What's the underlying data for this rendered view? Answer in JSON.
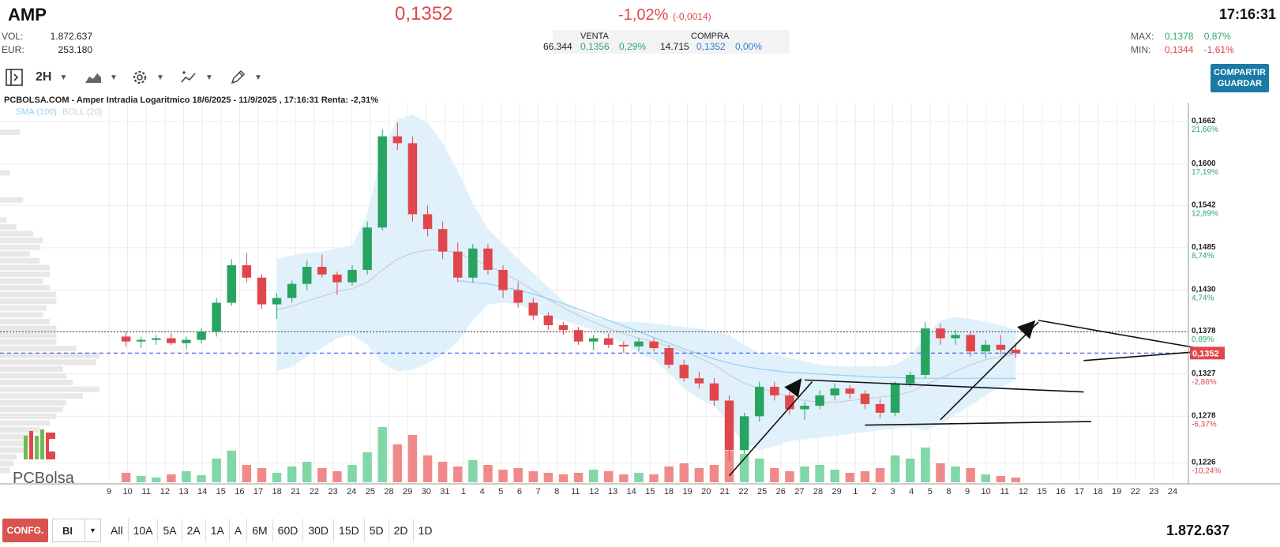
{
  "header": {
    "ticker": "AMP",
    "price": "0,1352",
    "change_pct": "-1,02%",
    "change_abs": "(-0,0014)",
    "time": "17:16:31",
    "vol_label": "VOL:",
    "vol_value": "1.872.637",
    "eur_label": "EUR:",
    "eur_value": "253.180",
    "venta_label": "VENTA",
    "venta_qty": "66.344",
    "venta_price": "0,1356",
    "venta_pct": "0,29%",
    "compra_label": "COMPRA",
    "compra_qty": "14.715",
    "compra_price": "0,1352",
    "compra_pct": "0,00%",
    "max_label": "MAX:",
    "max_value": "0,1378",
    "max_pct": "0,87%",
    "min_label": "MIN:",
    "min_value": "0,1344",
    "min_pct": "-1,61%"
  },
  "toolbar": {
    "timeframe": "2H",
    "share_line1": "COMPARTIR",
    "share_line2": "GUARDAR"
  },
  "chart": {
    "title": "PCBOLSA.COM - Amper Intradia Logaritmico 18/6/2025 - 11/9/2025 , 17:16:31 Renta: -2,31%",
    "legend_sma": "SMA (100)",
    "legend_boll": "BOLL (20)",
    "brand": "PCBolsa",
    "current_price_label": "0,1352"
  },
  "chart_data": {
    "type": "candlestick",
    "title": "PCBOLSA.COM - Amper Intradia Logaritmico 18/6/2025 - 11/9/2025 , 17:16:31 Renta: -2,31%",
    "y_scale": "log",
    "ylim": [
      0.1205,
      0.169
    ],
    "y_ticks": [
      {
        "price": "0,1662",
        "pct": "21,66%",
        "value": 0.1662
      },
      {
        "price": "0,1600",
        "pct": "17,19%",
        "value": 0.16
      },
      {
        "price": "0,1542",
        "pct": "12,89%",
        "value": 0.1542
      },
      {
        "price": "0,1485",
        "pct": "8,74%",
        "value": 0.1485
      },
      {
        "price": "0,1430",
        "pct": "4,74%",
        "value": 0.143
      },
      {
        "price": "0,1378",
        "pct": "0,89%",
        "value": 0.1378
      },
      {
        "price": "0,1327",
        "pct": "-2,86%",
        "value": 0.1327
      },
      {
        "price": "0,1278",
        "pct": "-6,37%",
        "value": 0.1278
      },
      {
        "price": "0,1226",
        "pct": "-10,24%",
        "value": 0.1226
      }
    ],
    "x_ticks": [
      "9",
      "10",
      "11",
      "12",
      "13",
      "14",
      "15",
      "16",
      "17",
      "18",
      "19",
      "20",
      "21",
      "22",
      "23",
      "24",
      "25",
      "26",
      "27",
      "28",
      "29",
      "30",
      "31",
      "1",
      "2",
      "3",
      "4",
      "5",
      "6",
      "7",
      "8",
      "9",
      "10",
      "11",
      "12",
      "13",
      "14",
      "15",
      "16",
      "17",
      "18",
      "19",
      "20",
      "21",
      "22",
      "23",
      "24",
      "25",
      "26",
      "27",
      "28",
      "29",
      "30",
      "31",
      "1",
      "2",
      "3",
      "4",
      "5",
      "6",
      "7",
      "8",
      "9",
      "10",
      "11",
      "12",
      "13",
      "14",
      "15",
      "16",
      "17",
      "18",
      "19",
      "20",
      "21",
      "22",
      "23",
      "24"
    ],
    "x_tick_index": [
      4,
      5,
      6,
      7,
      8,
      9,
      10,
      11,
      12,
      13,
      14,
      15,
      16,
      17,
      18,
      19,
      20,
      21,
      22,
      23,
      24,
      25,
      26,
      27,
      28,
      29,
      30,
      31,
      32,
      33,
      34,
      35,
      36,
      37,
      38,
      39,
      40,
      41,
      42,
      43,
      44,
      45,
      46,
      47,
      48,
      49,
      50,
      51,
      52,
      53,
      54,
      55,
      56,
      57,
      58,
      59,
      60,
      61
    ],
    "axis_labels_visible": [
      "9",
      "10",
      "11",
      "12",
      "13",
      "14",
      "15",
      "16",
      "17",
      "18",
      "21",
      "22",
      "23",
      "24",
      "25",
      "28",
      "29",
      "30",
      "31",
      "1",
      "4",
      "5",
      "6",
      "7",
      "8",
      "11",
      "12",
      "13",
      "14",
      "15",
      "18",
      "19",
      "20",
      "21",
      "22",
      "25",
      "26",
      "27",
      "28",
      "29",
      "1",
      "2",
      "3",
      "4",
      "5",
      "8",
      "9",
      "10",
      "11",
      "12",
      "15",
      "16",
      "17",
      "18",
      "19",
      "22",
      "23",
      "24"
    ],
    "last_price": 0.1352,
    "prev_close_line": 0.1378,
    "candles": [
      [
        0.1372,
        0.1378,
        0.136,
        0.1366
      ],
      [
        0.1366,
        0.1372,
        0.1358,
        0.1368
      ],
      [
        0.1368,
        0.1374,
        0.1362,
        0.137
      ],
      [
        0.137,
        0.1376,
        0.1362,
        0.1364
      ],
      [
        0.1364,
        0.1372,
        0.1356,
        0.1368
      ],
      [
        0.1368,
        0.1382,
        0.1364,
        0.1378
      ],
      [
        0.1378,
        0.142,
        0.1372,
        0.1414
      ],
      [
        0.1414,
        0.147,
        0.141,
        0.1462
      ],
      [
        0.1462,
        0.1478,
        0.144,
        0.1446
      ],
      [
        0.1446,
        0.145,
        0.1406,
        0.1412
      ],
      [
        0.1412,
        0.1426,
        0.1394,
        0.142
      ],
      [
        0.142,
        0.1442,
        0.1414,
        0.1438
      ],
      [
        0.1438,
        0.1468,
        0.143,
        0.146
      ],
      [
        0.146,
        0.1476,
        0.1446,
        0.145
      ],
      [
        0.145,
        0.1454,
        0.1424,
        0.144
      ],
      [
        0.144,
        0.1462,
        0.1436,
        0.1456
      ],
      [
        0.1456,
        0.152,
        0.145,
        0.1512
      ],
      [
        0.1512,
        0.165,
        0.1508,
        0.164
      ],
      [
        0.164,
        0.166,
        0.162,
        0.163
      ],
      [
        0.163,
        0.164,
        0.152,
        0.153
      ],
      [
        0.153,
        0.1542,
        0.15,
        0.151
      ],
      [
        0.151,
        0.152,
        0.147,
        0.148
      ],
      [
        0.148,
        0.1492,
        0.144,
        0.1446
      ],
      [
        0.1446,
        0.149,
        0.144,
        0.1484
      ],
      [
        0.1484,
        0.149,
        0.145,
        0.1456
      ],
      [
        0.1456,
        0.1462,
        0.142,
        0.143
      ],
      [
        0.143,
        0.144,
        0.1408,
        0.1414
      ],
      [
        0.1414,
        0.142,
        0.1392,
        0.1398
      ],
      [
        0.1398,
        0.1402,
        0.138,
        0.1386
      ],
      [
        0.1386,
        0.139,
        0.1374,
        0.138
      ],
      [
        0.138,
        0.1384,
        0.1362,
        0.1366
      ],
      [
        0.1366,
        0.1374,
        0.1356,
        0.137
      ],
      [
        0.137,
        0.1376,
        0.1358,
        0.1362
      ],
      [
        0.1362,
        0.1366,
        0.1352,
        0.136
      ],
      [
        0.136,
        0.137,
        0.1354,
        0.1366
      ],
      [
        0.1366,
        0.137,
        0.1354,
        0.1358
      ],
      [
        0.1358,
        0.1362,
        0.1334,
        0.1338
      ],
      [
        0.1338,
        0.1344,
        0.1318,
        0.1322
      ],
      [
        0.1322,
        0.133,
        0.131,
        0.1316
      ],
      [
        0.1316,
        0.1322,
        0.129,
        0.1296
      ],
      [
        0.1296,
        0.1302,
        0.1228,
        0.124
      ],
      [
        0.124,
        0.1282,
        0.1236,
        0.1278
      ],
      [
        0.1278,
        0.1318,
        0.1272,
        0.1312
      ],
      [
        0.1312,
        0.1318,
        0.1296,
        0.1302
      ],
      [
        0.1302,
        0.1306,
        0.128,
        0.1286
      ],
      [
        0.1286,
        0.1294,
        0.1274,
        0.129
      ],
      [
        0.129,
        0.1308,
        0.1286,
        0.1302
      ],
      [
        0.1302,
        0.1316,
        0.1296,
        0.131
      ],
      [
        0.131,
        0.1314,
        0.1298,
        0.1304
      ],
      [
        0.1304,
        0.1308,
        0.1286,
        0.1292
      ],
      [
        0.1292,
        0.1298,
        0.1276,
        0.1282
      ],
      [
        0.1282,
        0.1318,
        0.1278,
        0.1316
      ],
      [
        0.1316,
        0.133,
        0.1312,
        0.1326
      ],
      [
        0.1326,
        0.139,
        0.1322,
        0.1382
      ],
      [
        0.1382,
        0.1388,
        0.1362,
        0.137
      ],
      [
        0.137,
        0.138,
        0.1362,
        0.1374
      ],
      [
        0.1374,
        0.1378,
        0.1348,
        0.1354
      ],
      [
        0.1354,
        0.1368,
        0.1346,
        0.1362
      ],
      [
        0.1362,
        0.1374,
        0.135,
        0.1356
      ],
      [
        0.1356,
        0.1364,
        0.1346,
        0.1352
      ]
    ],
    "volume": [
      12,
      8,
      6,
      10,
      14,
      9,
      30,
      40,
      22,
      18,
      12,
      20,
      26,
      18,
      14,
      22,
      38,
      70,
      48,
      60,
      34,
      26,
      20,
      28,
      22,
      16,
      18,
      14,
      12,
      10,
      12,
      16,
      14,
      10,
      12,
      10,
      20,
      24,
      18,
      22,
      40,
      36,
      30,
      18,
      14,
      20,
      22,
      16,
      12,
      14,
      18,
      34,
      30,
      44,
      24,
      20,
      18,
      10,
      8,
      6
    ],
    "sma_100": [
      null,
      null,
      null,
      null,
      null,
      null,
      null,
      null,
      null,
      null,
      null,
      null,
      null,
      null,
      null,
      null,
      null,
      null,
      null,
      null,
      null,
      null,
      0.1442,
      0.144,
      0.1438,
      0.1434,
      0.143,
      0.1425,
      0.1419,
      0.1413,
      0.1406,
      0.1399,
      0.1392,
      0.1385,
      0.1378,
      0.1371,
      0.1364,
      0.1357,
      0.1351,
      0.1345,
      0.134,
      0.1336,
      0.1333,
      0.1331,
      0.1329,
      0.1328,
      0.1327,
      0.1326,
      0.1325,
      0.1324,
      0.1323,
      0.1323,
      0.1322,
      0.1322,
      0.1322,
      0.1322,
      0.1322,
      0.1322,
      0.1322,
      0.1322
    ],
    "boll_mid": [
      null,
      null,
      null,
      null,
      null,
      null,
      null,
      null,
      null,
      null,
      0.1405,
      0.141,
      0.1416,
      0.1422,
      0.1428,
      0.1432,
      0.144,
      0.1456,
      0.147,
      0.1478,
      0.1482,
      0.1482,
      0.1478,
      0.147,
      0.1462,
      0.1452,
      0.1442,
      0.143,
      0.1418,
      0.1408,
      0.1398,
      0.139,
      0.1382,
      0.1376,
      0.137,
      0.1366,
      0.136,
      0.1354,
      0.1346,
      0.1338,
      0.1326,
      0.1316,
      0.131,
      0.1306,
      0.13,
      0.1296,
      0.1294,
      0.1294,
      0.1296,
      0.1298,
      0.13,
      0.1302,
      0.1306,
      0.1314,
      0.1322,
      0.133,
      0.1338,
      0.1344,
      0.1348,
      0.135
    ],
    "boll_upper": [
      null,
      null,
      null,
      null,
      null,
      null,
      null,
      null,
      null,
      null,
      0.147,
      0.1475,
      0.1478,
      0.148,
      0.1484,
      0.1488,
      0.153,
      0.162,
      0.1665,
      0.1672,
      0.166,
      0.163,
      0.159,
      0.1545,
      0.151,
      0.149,
      0.147,
      0.1452,
      0.1434,
      0.1416,
      0.1404,
      0.1396,
      0.1392,
      0.139,
      0.139,
      0.1388,
      0.1386,
      0.1384,
      0.1382,
      0.1378,
      0.1374,
      0.1362,
      0.1352,
      0.135,
      0.1346,
      0.1342,
      0.1338,
      0.1336,
      0.1336,
      0.1336,
      0.1336,
      0.1338,
      0.1348,
      0.1372,
      0.1392,
      0.1396,
      0.1394,
      0.139,
      0.1386,
      0.138
    ],
    "boll_lower": [
      null,
      null,
      null,
      null,
      null,
      null,
      null,
      null,
      null,
      null,
      0.133,
      0.1336,
      0.1348,
      0.1358,
      0.137,
      0.1374,
      0.1362,
      0.134,
      0.133,
      0.1332,
      0.134,
      0.135,
      0.1366,
      0.1392,
      0.1412,
      0.1414,
      0.1412,
      0.1404,
      0.1396,
      0.1392,
      0.1386,
      0.138,
      0.1372,
      0.1364,
      0.1352,
      0.1344,
      0.1328,
      0.131,
      0.1298,
      0.129,
      0.127,
      0.1246,
      0.124,
      0.1244,
      0.125,
      0.1252,
      0.1254,
      0.1256,
      0.1258,
      0.126,
      0.1262,
      0.1264,
      0.1266,
      0.1262,
      0.1268,
      0.128,
      0.129,
      0.1302,
      0.1312,
      0.132
    ],
    "depth_bars": [
      12,
      0,
      0,
      0,
      0,
      0,
      6,
      0,
      0,
      0,
      14,
      0,
      0,
      4,
      10,
      20,
      26,
      24,
      18,
      24,
      30,
      30,
      26,
      30,
      34,
      34,
      28,
      26,
      30,
      34,
      34,
      34,
      46,
      60,
      58,
      38,
      40,
      44,
      60,
      50,
      40,
      38,
      34,
      30,
      24,
      20,
      18,
      16,
      10,
      8,
      6
    ]
  },
  "bottombar": {
    "config_label": "CONFG.",
    "bi_label": "BI",
    "periods": [
      "All",
      "10A",
      "5A",
      "2A",
      "1A",
      "A",
      "6M",
      "60D",
      "30D",
      "15D",
      "5D",
      "2D",
      "1D"
    ],
    "total_volume": "1.872.637"
  }
}
